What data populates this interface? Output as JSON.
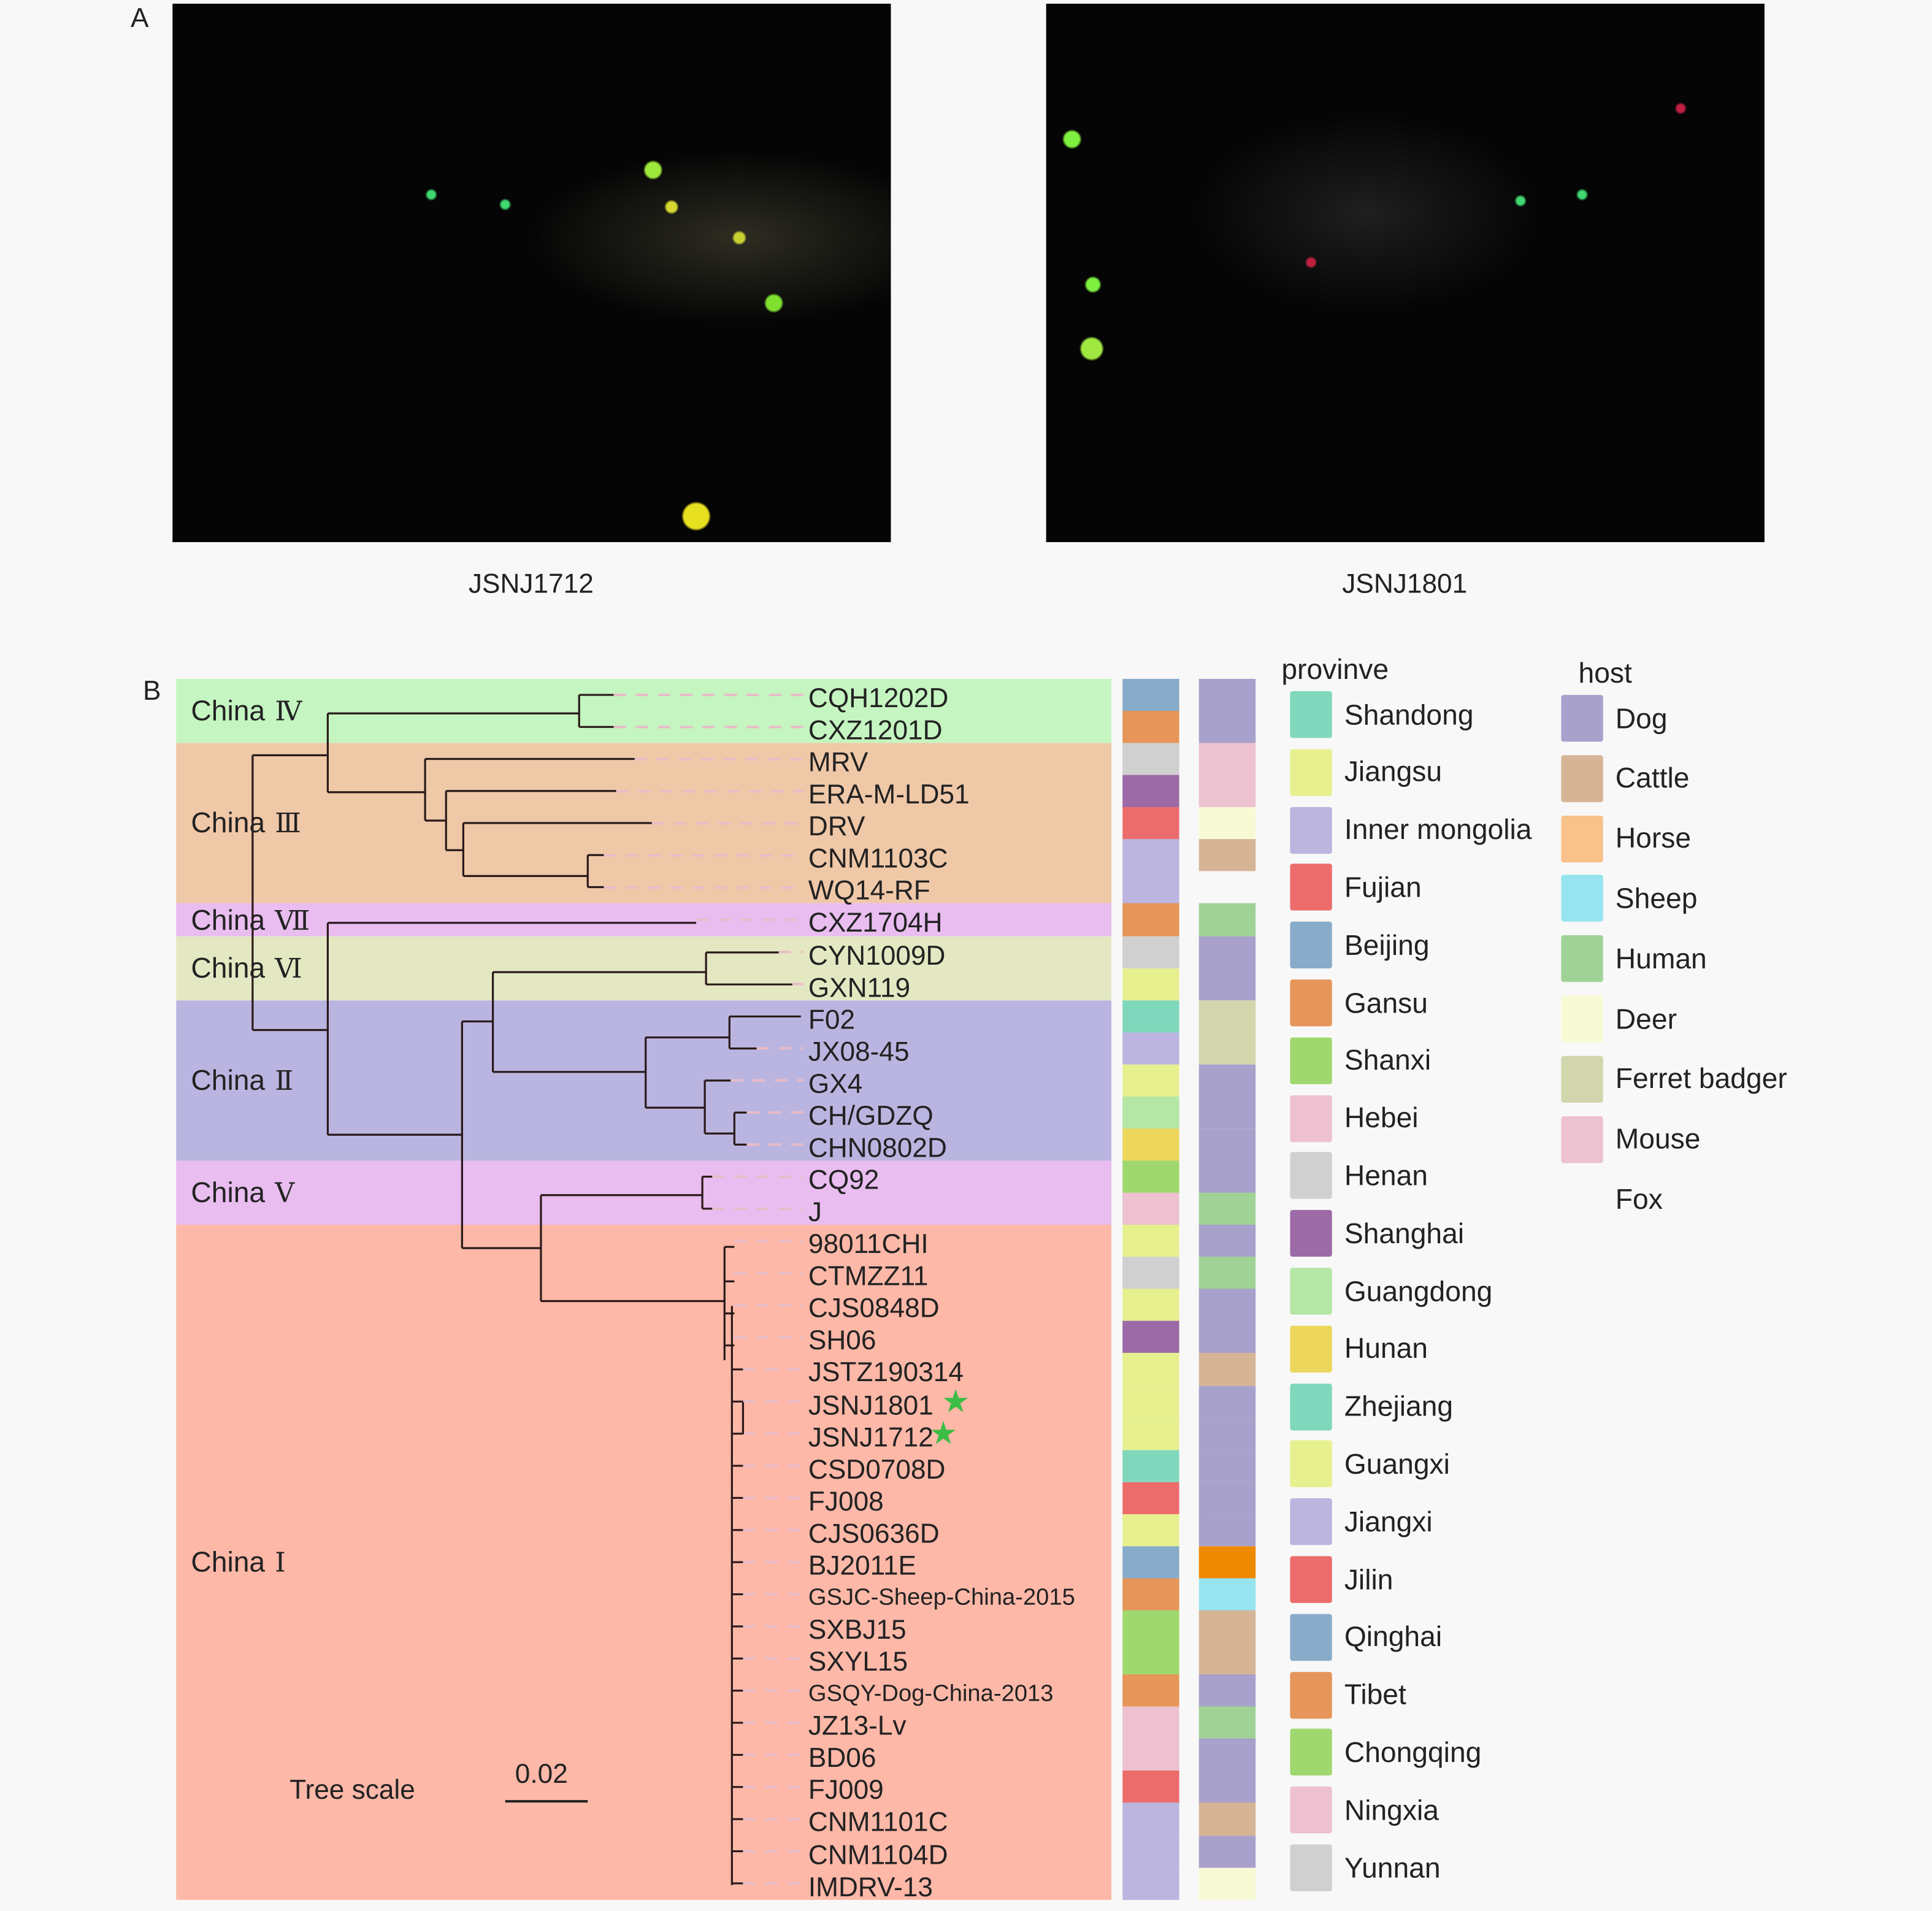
{
  "panel_a": {
    "letter": "A",
    "images": [
      {
        "caption": "JSNJ1712"
      },
      {
        "caption": "JSNJ1801"
      }
    ]
  },
  "panel_b": {
    "letter": "B",
    "tree_scale": {
      "label": "Tree scale",
      "value": "0.02"
    },
    "clades": [
      {
        "name": "China",
        "numeral": "Ⅳ",
        "rows": [
          0,
          1
        ],
        "color": "#c5f5c0"
      },
      {
        "name": "China",
        "numeral": "Ⅲ",
        "rows": [
          2,
          6
        ],
        "color": "#efc8a8"
      },
      {
        "name": "China",
        "numeral": "Ⅶ",
        "rows": [
          7,
          7
        ],
        "color": "#e9bdf0"
      },
      {
        "name": "China",
        "numeral": "Ⅵ",
        "rows": [
          8,
          9
        ],
        "color": "#e4e8c2"
      },
      {
        "name": "China",
        "numeral": "Ⅱ",
        "rows": [
          10,
          14
        ],
        "color": "#bab5e0"
      },
      {
        "name": "China",
        "numeral": "Ⅴ",
        "rows": [
          15,
          16
        ],
        "color": "#e9bdf0"
      },
      {
        "name": "China",
        "numeral": "Ⅰ",
        "rows": [
          17,
          37
        ],
        "color": "#fdb8a8"
      }
    ],
    "leaves": [
      {
        "name": "CQH1202D",
        "province": "Beijing",
        "host": "Dog"
      },
      {
        "name": "CXZ1201D",
        "province": "Gansu",
        "host": "Dog"
      },
      {
        "name": "MRV",
        "province": "Henan",
        "host": "Mouse"
      },
      {
        "name": "ERA-M-LD51",
        "province": "Shanghai",
        "host": "Mouse"
      },
      {
        "name": "DRV",
        "province": "Fujian",
        "host": "Deer"
      },
      {
        "name": "CNM1103C",
        "province": "Inner mongolia",
        "host": "Cattle"
      },
      {
        "name": "WQ14-RF",
        "province": "Inner mongolia",
        "host": "Fox"
      },
      {
        "name": "CXZ1704H",
        "province": "Tibet",
        "host": "Human"
      },
      {
        "name": "CYN1009D",
        "province": "Yunnan",
        "host": "Dog"
      },
      {
        "name": "GXN119",
        "province": "Guangxi",
        "host": "Dog"
      },
      {
        "name": "F02",
        "province": "Zhejiang",
        "host": "Ferret badger"
      },
      {
        "name": "JX08-45",
        "province": "Jiangxi",
        "host": "Ferret badger"
      },
      {
        "name": "GX4",
        "province": "Guangxi",
        "host": "Dog"
      },
      {
        "name": "CH/GDZQ",
        "province": "Guangdong",
        "host": "Dog"
      },
      {
        "name": "CHN0802D",
        "province": "Hunan",
        "host": "Dog"
      },
      {
        "name": "CQ92",
        "province": "Chongqing",
        "host": "Dog"
      },
      {
        "name": "J",
        "province": "Ningxia",
        "host": "Human"
      },
      {
        "name": "98011CHI",
        "province": "Jiangsu",
        "host": "Dog"
      },
      {
        "name": "CTMZZ11",
        "province": "Henan",
        "host": "Human"
      },
      {
        "name": "CJS0848D",
        "province": "Jiangsu",
        "host": "Dog"
      },
      {
        "name": "SH06",
        "province": "Shanghai",
        "host": "Dog"
      },
      {
        "name": "JSTZ190314",
        "province": "Jiangsu",
        "host": "Cattle"
      },
      {
        "name": "JSNJ1801",
        "province": "Jiangsu",
        "host": "Dog",
        "starred": true
      },
      {
        "name": "JSNJ1712",
        "province": "Jiangsu",
        "host": "Dog",
        "starred": true
      },
      {
        "name": "CSD0708D",
        "province": "Shandong",
        "host": "Dog"
      },
      {
        "name": "FJ008",
        "province": "Fujian",
        "host": "Dog"
      },
      {
        "name": "CJS0636D",
        "province": "Jiangsu",
        "host": "Dog"
      },
      {
        "name": "BJ2011E",
        "province": "Beijing",
        "host": "Horse"
      },
      {
        "name": "GSJC-Sheep-China-2015",
        "province": "Gansu",
        "host": "Sheep"
      },
      {
        "name": "SXBJ15",
        "province": "Shanxi",
        "host": "Cattle"
      },
      {
        "name": "SXYL15",
        "province": "Shanxi",
        "host": "Cattle"
      },
      {
        "name": "GSQY-Dog-China-2013",
        "province": "Gansu",
        "host": "Dog"
      },
      {
        "name": "JZ13-Lv",
        "province": "Hebei",
        "host": "Human"
      },
      {
        "name": "BD06",
        "province": "Hebei",
        "host": "Dog"
      },
      {
        "name": "FJ009",
        "province": "Fujian",
        "host": "Dog"
      },
      {
        "name": "CNM1101C",
        "province": "Inner mongolia",
        "host": "Cattle"
      },
      {
        "name": "CNM1104D",
        "province": "Inner mongolia",
        "host": "Dog"
      },
      {
        "name": "IMDRV-13",
        "province": "Inner mongolia",
        "host": "Deer"
      }
    ],
    "star_color": "#3cbd45",
    "legend_province": {
      "title": "provinve",
      "items": [
        {
          "name": "Shandong",
          "color": "#80d8bc"
        },
        {
          "name": "Jiangsu",
          "color": "#e6f08f"
        },
        {
          "name": "Inner mongolia",
          "color": "#bbb5e0"
        },
        {
          "name": "Fujian",
          "color": "#ec6c6c"
        },
        {
          "name": "Beijing",
          "color": "#88abc9"
        },
        {
          "name": "Gansu",
          "color": "#e6965a"
        },
        {
          "name": "Shanxi",
          "color": "#a0d870"
        },
        {
          "name": "Hebei",
          "color": "#edc1d0"
        },
        {
          "name": "Henan",
          "color": "#d0d0d0"
        },
        {
          "name": "Shanghai",
          "color": "#9c6aa6"
        },
        {
          "name": "Guangdong",
          "color": "#b5e6a6"
        },
        {
          "name": "Hunan",
          "color": "#ecd65c"
        },
        {
          "name": "Zhejiang",
          "color": "#80d8bc"
        },
        {
          "name": "Guangxi",
          "color": "#e6f08f"
        },
        {
          "name": "Jiangxi",
          "color": "#bbb5e0"
        },
        {
          "name": "Jilin",
          "color": "#ec6c6c"
        },
        {
          "name": "Qinghai",
          "color": "#88abc9"
        },
        {
          "name": "Tibet",
          "color": "#e6965a"
        },
        {
          "name": "Chongqing",
          "color": "#a0d870"
        },
        {
          "name": "Ningxia",
          "color": "#edc1d0"
        },
        {
          "name": "Yunnan",
          "color": "#d0d0d0"
        }
      ]
    },
    "legend_host": {
      "title": "host",
      "items": [
        {
          "name": "Dog",
          "color": "#a8a1cc"
        },
        {
          "name": "Cattle",
          "color": "#d6b496"
        },
        {
          "name": "Horse",
          "color": "#f8c28a"
        },
        {
          "name": "Sheep",
          "color": "#96e4f0"
        },
        {
          "name": "Human",
          "color": "#a0d296"
        },
        {
          "name": "Deer",
          "color": "#f8fad6"
        },
        {
          "name": "Ferret badger",
          "color": "#d2d6ac"
        },
        {
          "name": "Mouse",
          "color": "#ecc1d0"
        },
        {
          "name": "Fox",
          "color": "#f8f8f8"
        }
      ]
    },
    "strip_overrides": {
      "host_row_27_color": "#ef8a00"
    }
  }
}
